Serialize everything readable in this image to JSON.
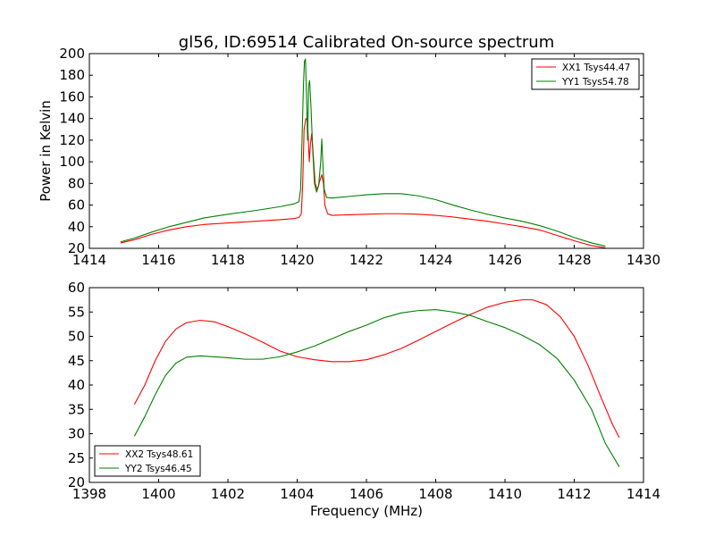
{
  "chart_data": [
    {
      "type": "line",
      "title": "gl56, ID:69514 Calibrated On-source spectrum",
      "xlabel": "",
      "ylabel": "Power in Kelvin",
      "xlim": [
        1414,
        1430
      ],
      "ylim": [
        20,
        200
      ],
      "xticks": [
        1414,
        1416,
        1418,
        1420,
        1422,
        1424,
        1426,
        1428,
        1430
      ],
      "yticks": [
        20,
        40,
        60,
        80,
        100,
        120,
        140,
        160,
        180,
        200
      ],
      "grid": false,
      "legend_position": "top-right",
      "series": [
        {
          "name": "XX1 Tsys44.47",
          "color": "#ff0000",
          "points": [
            [
              1414.9,
              25
            ],
            [
              1415.3,
              28
            ],
            [
              1415.8,
              33
            ],
            [
              1416.3,
              37
            ],
            [
              1416.8,
              40
            ],
            [
              1417.3,
              42
            ],
            [
              1418.0,
              43.5
            ],
            [
              1418.8,
              45
            ],
            [
              1419.5,
              46.5
            ],
            [
              1419.9,
              47.5
            ],
            [
              1420.05,
              48.5
            ],
            [
              1420.12,
              52
            ],
            [
              1420.16,
              80
            ],
            [
              1420.2,
              130
            ],
            [
              1420.25,
              140
            ],
            [
              1420.3,
              138
            ],
            [
              1420.35,
              100
            ],
            [
              1420.38,
              115
            ],
            [
              1420.42,
              126
            ],
            [
              1420.46,
              108
            ],
            [
              1420.52,
              80
            ],
            [
              1420.58,
              74
            ],
            [
              1420.65,
              82
            ],
            [
              1420.71,
              88
            ],
            [
              1420.76,
              80
            ],
            [
              1420.8,
              60
            ],
            [
              1420.88,
              52
            ],
            [
              1421.0,
              50.5
            ],
            [
              1421.5,
              51
            ],
            [
              1422.0,
              51.5
            ],
            [
              1422.5,
              52
            ],
            [
              1423.0,
              52
            ],
            [
              1423.5,
              51.5
            ],
            [
              1424.0,
              50.5
            ],
            [
              1424.5,
              49
            ],
            [
              1425.0,
              47
            ],
            [
              1425.5,
              45
            ],
            [
              1426.0,
              42.5
            ],
            [
              1426.5,
              40
            ],
            [
              1427.0,
              37
            ],
            [
              1427.5,
              32
            ],
            [
              1428.0,
              27
            ],
            [
              1428.5,
              22.5
            ],
            [
              1428.9,
              20.5
            ]
          ]
        },
        {
          "name": "YY1 Tsys54.78",
          "color": "#008000",
          "points": [
            [
              1414.9,
              26
            ],
            [
              1415.3,
              29.5
            ],
            [
              1415.8,
              35
            ],
            [
              1416.3,
              40
            ],
            [
              1416.8,
              44
            ],
            [
              1417.3,
              48
            ],
            [
              1418.0,
              51.5
            ],
            [
              1418.8,
              55
            ],
            [
              1419.5,
              58.5
            ],
            [
              1419.9,
              61
            ],
            [
              1420.05,
              63
            ],
            [
              1420.1,
              75
            ],
            [
              1420.14,
              120
            ],
            [
              1420.18,
              170
            ],
            [
              1420.21,
              193
            ],
            [
              1420.24,
              195
            ],
            [
              1420.27,
              160
            ],
            [
              1420.3,
              120
            ],
            [
              1420.33,
              170
            ],
            [
              1420.36,
              175
            ],
            [
              1420.4,
              150
            ],
            [
              1420.45,
              110
            ],
            [
              1420.5,
              80
            ],
            [
              1420.56,
              72
            ],
            [
              1420.62,
              78
            ],
            [
              1420.68,
              100
            ],
            [
              1420.71,
              121
            ],
            [
              1420.74,
              100
            ],
            [
              1420.78,
              75
            ],
            [
              1420.85,
              67
            ],
            [
              1421.0,
              66.5
            ],
            [
              1421.5,
              68
            ],
            [
              1422.0,
              69.5
            ],
            [
              1422.5,
              70.5
            ],
            [
              1423.0,
              70.5
            ],
            [
              1423.5,
              68.5
            ],
            [
              1424.0,
              65
            ],
            [
              1424.5,
              60
            ],
            [
              1425.0,
              55.5
            ],
            [
              1425.5,
              51.5
            ],
            [
              1426.0,
              48
            ],
            [
              1426.5,
              45
            ],
            [
              1427.0,
              41
            ],
            [
              1427.5,
              36
            ],
            [
              1428.0,
              30
            ],
            [
              1428.5,
              25
            ],
            [
              1428.9,
              22
            ]
          ]
        }
      ]
    },
    {
      "type": "line",
      "title": "",
      "xlabel": "Frequency (MHz)",
      "ylabel": "",
      "xlim": [
        1398,
        1414
      ],
      "ylim": [
        20,
        60
      ],
      "xticks": [
        1398,
        1400,
        1402,
        1404,
        1406,
        1408,
        1410,
        1412,
        1414
      ],
      "yticks": [
        20,
        25,
        30,
        35,
        40,
        45,
        50,
        55,
        60
      ],
      "grid": false,
      "legend_position": "bottom-left",
      "series": [
        {
          "name": "XX2 Tsys48.61",
          "color": "#ff0000",
          "points": [
            [
              1399.3,
              36
            ],
            [
              1399.6,
              40
            ],
            [
              1399.9,
              45
            ],
            [
              1400.2,
              49
            ],
            [
              1400.5,
              51.5
            ],
            [
              1400.8,
              52.8
            ],
            [
              1401.2,
              53.3
            ],
            [
              1401.6,
              53
            ],
            [
              1402.0,
              52
            ],
            [
              1402.5,
              50.5
            ],
            [
              1403.0,
              48.8
            ],
            [
              1403.5,
              47
            ],
            [
              1404.0,
              45.8
            ],
            [
              1404.5,
              45.2
            ],
            [
              1405.0,
              44.8
            ],
            [
              1405.5,
              44.8
            ],
            [
              1406.0,
              45.2
            ],
            [
              1406.5,
              46.2
            ],
            [
              1407.0,
              47.5
            ],
            [
              1407.5,
              49.2
            ],
            [
              1408.0,
              51
            ],
            [
              1408.5,
              52.8
            ],
            [
              1409.0,
              54.5
            ],
            [
              1409.5,
              56
            ],
            [
              1410.0,
              57
            ],
            [
              1410.5,
              57.5
            ],
            [
              1410.8,
              57.5
            ],
            [
              1411.2,
              56.5
            ],
            [
              1411.6,
              54
            ],
            [
              1412.0,
              50
            ],
            [
              1412.4,
              44
            ],
            [
              1412.8,
              37
            ],
            [
              1413.1,
              32
            ],
            [
              1413.3,
              29.2
            ]
          ]
        },
        {
          "name": "YY2 Tsys46.45",
          "color": "#008000",
          "points": [
            [
              1399.3,
              29.5
            ],
            [
              1399.6,
              33.5
            ],
            [
              1399.9,
              38
            ],
            [
              1400.2,
              42
            ],
            [
              1400.5,
              44.5
            ],
            [
              1400.8,
              45.7
            ],
            [
              1401.2,
              46
            ],
            [
              1401.6,
              45.8
            ],
            [
              1402.0,
              45.6
            ],
            [
              1402.5,
              45.3
            ],
            [
              1403.0,
              45.3
            ],
            [
              1403.5,
              45.8
            ],
            [
              1404.0,
              46.8
            ],
            [
              1404.5,
              48
            ],
            [
              1405.0,
              49.5
            ],
            [
              1405.5,
              51
            ],
            [
              1406.0,
              52.3
            ],
            [
              1406.5,
              53.8
            ],
            [
              1407.0,
              54.8
            ],
            [
              1407.5,
              55.3
            ],
            [
              1408.0,
              55.5
            ],
            [
              1408.5,
              55
            ],
            [
              1409.0,
              54.3
            ],
            [
              1409.5,
              53
            ],
            [
              1410.0,
              51.8
            ],
            [
              1410.5,
              50.2
            ],
            [
              1411.0,
              48.3
            ],
            [
              1411.5,
              45.5
            ],
            [
              1412.0,
              41
            ],
            [
              1412.5,
              35
            ],
            [
              1412.9,
              28
            ],
            [
              1413.3,
              23.2
            ]
          ]
        }
      ]
    }
  ]
}
